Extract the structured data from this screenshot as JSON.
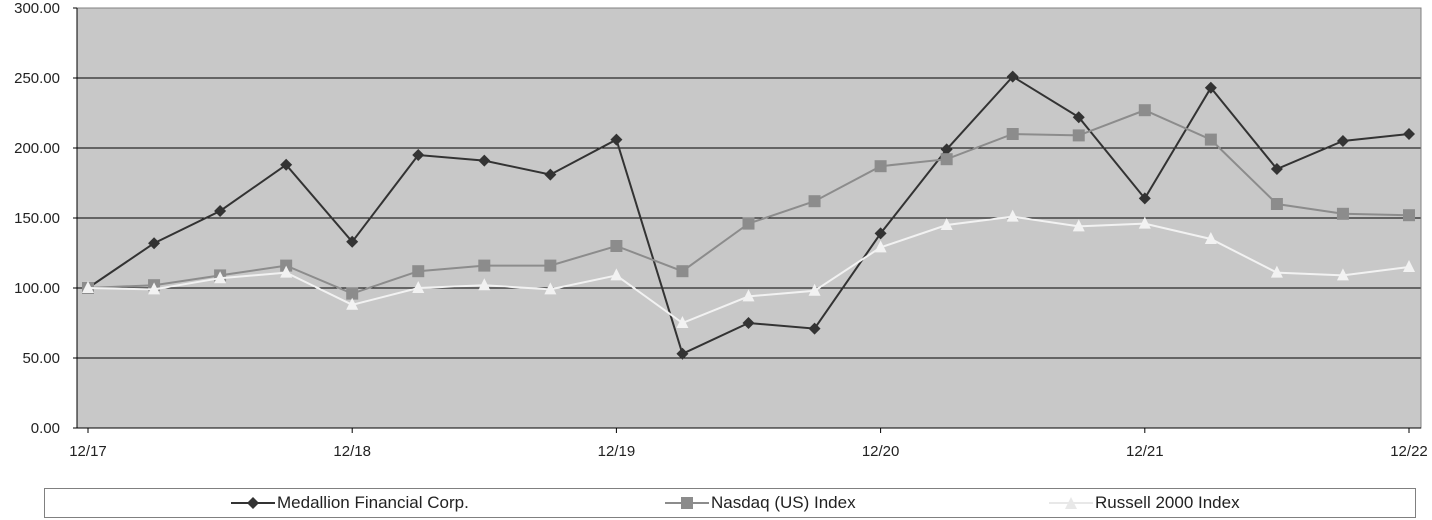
{
  "chart_data": {
    "type": "line",
    "x_tick_labels": [
      "12/17",
      "12/18",
      "12/19",
      "12/20",
      "12/21",
      "12/22"
    ],
    "ylim": [
      0,
      300
    ],
    "y_tick_labels": [
      "0.00",
      "50.00",
      "100.00",
      "150.00",
      "200.00",
      "250.00",
      "300.00"
    ],
    "grid": true,
    "legend_placement": "bottom",
    "series": [
      {
        "name": "Medallion Financial Corp.",
        "marker": "diamond",
        "color": "#333333",
        "values": [
          100,
          132,
          155,
          188,
          133,
          195,
          191,
          181,
          206,
          53,
          75,
          71,
          139,
          199,
          251,
          222,
          164,
          243,
          185,
          205,
          210
        ]
      },
      {
        "name": "Nasdaq (US) Index",
        "marker": "square",
        "color": "#8c8c8c",
        "values": [
          100,
          102,
          109,
          116,
          96,
          112,
          116,
          116,
          130,
          112,
          146,
          162,
          187,
          192,
          210,
          209,
          227,
          206,
          160,
          153,
          152
        ]
      },
      {
        "name": "Russell 2000 Index",
        "marker": "triangle",
        "color": "#f2f2f2",
        "values": [
          100,
          99,
          107,
          111,
          88,
          100,
          102,
          99,
          109,
          75,
          94,
          98,
          129,
          145,
          151,
          144,
          146,
          135,
          111,
          109,
          115
        ]
      }
    ]
  }
}
